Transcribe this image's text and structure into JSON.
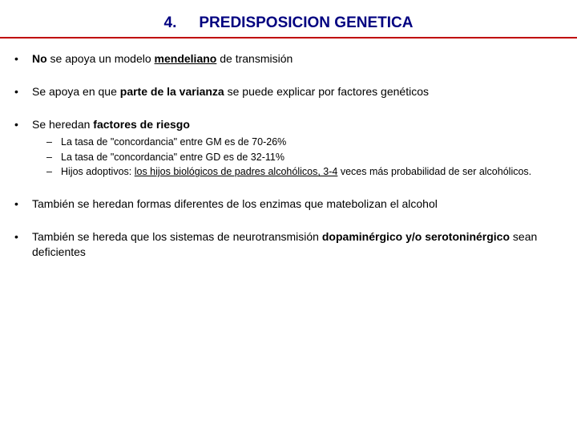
{
  "title": {
    "number": "4.",
    "text": "PREDISPOSICION GENETICA"
  },
  "bullets": [
    {
      "parts": [
        {
          "t": "No",
          "b": true
        },
        {
          "t": " se apoya un modelo "
        },
        {
          "t": "mendeliano",
          "b": true,
          "u": true
        },
        {
          "t": " de transmisión"
        }
      ]
    },
    {
      "parts": [
        {
          "t": "Se apoya en que "
        },
        {
          "t": "parte de la varianza",
          "b": true
        },
        {
          "t": " se puede explicar por factores genéticos"
        }
      ]
    },
    {
      "parts": [
        {
          "t": "Se heredan "
        },
        {
          "t": "factores de riesgo",
          "b": true
        }
      ],
      "sub": [
        {
          "parts": [
            {
              "t": "La tasa de \"concordancia\" entre GM es de 70-26%"
            }
          ]
        },
        {
          "parts": [
            {
              "t": "La tasa de \"concordancia\" entre GD es de 32-11%"
            }
          ]
        },
        {
          "parts": [
            {
              "t": "Hijos adoptivos: "
            },
            {
              "t": "los hijos biológicos de padres alcohólicos, 3-4",
              "u": true
            },
            {
              "t": " veces más probabilidad de ser alcohólicos."
            }
          ]
        }
      ]
    },
    {
      "parts": [
        {
          "t": "También se heredan formas diferentes de los enzimas que matebolizan el alcohol"
        }
      ]
    },
    {
      "parts": [
        {
          "t": "También se hereda que los sistemas de neurotransmisión "
        },
        {
          "t": "dopaminérgico y/o serotoninérgico",
          "b": true
        },
        {
          "t": " sean deficientes"
        }
      ]
    }
  ],
  "colors": {
    "title_color": "#000080",
    "line_color": "#c00000",
    "text_color": "#000000",
    "background": "#ffffff"
  }
}
